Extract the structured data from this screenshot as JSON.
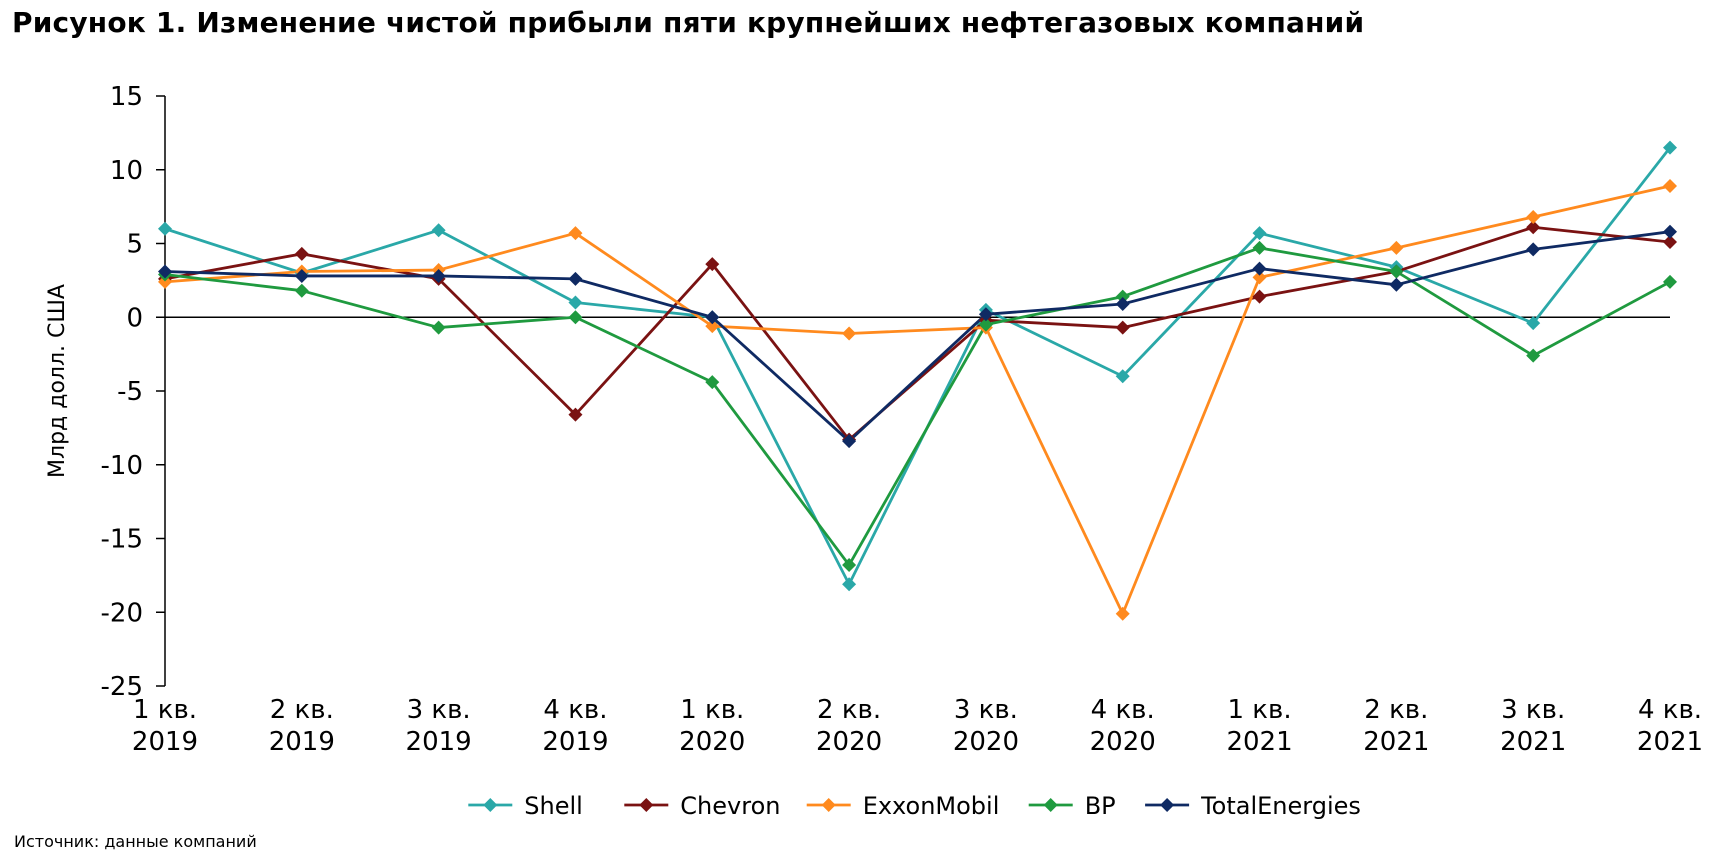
{
  "title": "Рисунок 1. Изменение чистой прибыли пяти крупнейших нефтегазовых компаний",
  "source": "Источник: данные компаний",
  "chart_data": {
    "type": "line",
    "ylabel": "Млрд долл. США",
    "ylim": [
      -25,
      15
    ],
    "yticks": [
      15,
      10,
      5,
      0,
      -5,
      -10,
      -15,
      -20,
      -25
    ],
    "ytick_labels": [
      "15",
      "10",
      "5",
      "0",
      "-5",
      "-10",
      "-15",
      "-20",
      "-25"
    ],
    "categories": [
      [
        "1 кв.",
        "2019"
      ],
      [
        "2 кв.",
        "2019"
      ],
      [
        "3 кв.",
        "2019"
      ],
      [
        "4 кв.",
        "2019"
      ],
      [
        "1 кв.",
        "2020"
      ],
      [
        "2 кв.",
        "2020"
      ],
      [
        "3 кв.",
        "2020"
      ],
      [
        "4 кв.",
        "2020"
      ],
      [
        "1 кв.",
        "2021"
      ],
      [
        "2 кв.",
        "2021"
      ],
      [
        "3 кв.",
        "2021"
      ],
      [
        "4 кв.",
        "2021"
      ]
    ],
    "legend_position": "bottom",
    "grid": false,
    "series": [
      {
        "name": "Shell",
        "color": "#2aa8a8",
        "values": [
          6.0,
          3.0,
          5.9,
          1.0,
          0.0,
          -18.1,
          0.5,
          -4.0,
          5.7,
          3.4,
          -0.4,
          11.5
        ]
      },
      {
        "name": "Chevron",
        "color": "#7a1212",
        "values": [
          2.6,
          4.3,
          2.6,
          -6.6,
          3.6,
          -8.3,
          -0.2,
          -0.7,
          1.4,
          3.1,
          6.1,
          5.1
        ]
      },
      {
        "name": "ExxonMobil",
        "color": "#ff8a1e",
        "values": [
          2.4,
          3.1,
          3.2,
          5.7,
          -0.6,
          -1.1,
          -0.7,
          -20.1,
          2.7,
          4.7,
          6.8,
          8.9
        ]
      },
      {
        "name": "BP",
        "color": "#1f9a3f",
        "values": [
          2.9,
          1.8,
          -0.7,
          0.0,
          -4.4,
          -16.8,
          -0.5,
          1.4,
          4.7,
          3.1,
          -2.6,
          2.4
        ]
      },
      {
        "name": "TotalEnergies",
        "color": "#0f2a63",
        "values": [
          3.1,
          2.8,
          2.8,
          2.6,
          0.0,
          -8.4,
          0.2,
          0.9,
          3.3,
          2.2,
          4.6,
          5.8
        ]
      }
    ]
  }
}
